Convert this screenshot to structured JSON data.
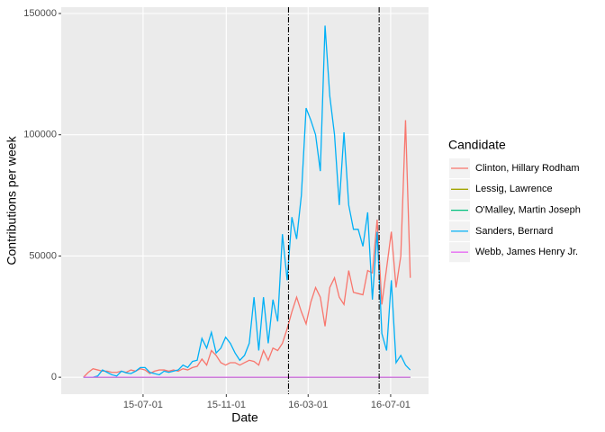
{
  "chart_data": {
    "type": "line",
    "x_label": "Date",
    "y_label": "Contributions per week",
    "legend_title": "Candidate",
    "legend_position": "right",
    "grid": true,
    "xlim": [
      "2015-03-02",
      "2016-08-26"
    ],
    "xticks": [
      {
        "value": "2015-07-01",
        "label": "15-07-01"
      },
      {
        "value": "2015-11-01",
        "label": "15-11-01"
      },
      {
        "value": "2016-03-01",
        "label": "16-03-01"
      },
      {
        "value": "2016-07-01",
        "label": "16-07-01"
      }
    ],
    "ylim": [
      -7000,
      152600
    ],
    "yticks": [
      0,
      50000,
      100000,
      150000
    ],
    "vlines": [
      "2016-02-01",
      "2016-06-14"
    ],
    "x": [
      "2015-04-04",
      "2015-04-11",
      "2015-04-18",
      "2015-04-25",
      "2015-05-02",
      "2015-05-09",
      "2015-05-16",
      "2015-05-23",
      "2015-05-30",
      "2015-06-06",
      "2015-06-13",
      "2015-06-20",
      "2015-06-27",
      "2015-07-04",
      "2015-07-11",
      "2015-07-18",
      "2015-07-25",
      "2015-08-01",
      "2015-08-08",
      "2015-08-15",
      "2015-08-22",
      "2015-08-29",
      "2015-09-05",
      "2015-09-12",
      "2015-09-19",
      "2015-09-26",
      "2015-10-03",
      "2015-10-10",
      "2015-10-17",
      "2015-10-24",
      "2015-10-31",
      "2015-11-07",
      "2015-11-14",
      "2015-11-21",
      "2015-11-28",
      "2015-12-05",
      "2015-12-12",
      "2015-12-19",
      "2015-12-26",
      "2016-01-02",
      "2016-01-09",
      "2016-01-16",
      "2016-01-23",
      "2016-01-30",
      "2016-02-06",
      "2016-02-13",
      "2016-02-20",
      "2016-02-27",
      "2016-03-05",
      "2016-03-12",
      "2016-03-19",
      "2016-03-26",
      "2016-04-02",
      "2016-04-09",
      "2016-04-16",
      "2016-04-23",
      "2016-04-30",
      "2016-05-07",
      "2016-05-14",
      "2016-05-21",
      "2016-05-28",
      "2016-06-04",
      "2016-06-11",
      "2016-06-18",
      "2016-06-25",
      "2016-07-02",
      "2016-07-09",
      "2016-07-16",
      "2016-07-23",
      "2016-07-30"
    ],
    "series": [
      {
        "name": "Clinton, Hillary Rodham",
        "color": "#F8766D",
        "values": [
          0,
          2000,
          3500,
          3000,
          2500,
          2500,
          2000,
          2000,
          2500,
          2000,
          3000,
          2500,
          3500,
          3000,
          1500,
          2500,
          3000,
          3000,
          2500,
          3000,
          2500,
          3500,
          3000,
          4000,
          4500,
          7500,
          5000,
          11000,
          9000,
          6000,
          5000,
          6000,
          6000,
          5000,
          6000,
          7000,
          6500,
          5000,
          11000,
          7000,
          12000,
          11000,
          14000,
          20000,
          27000,
          33000,
          27000,
          22000,
          31000,
          37000,
          33000,
          21000,
          37000,
          41000,
          33000,
          30000,
          44000,
          35000,
          34500,
          34000,
          44000,
          43000,
          65000,
          30000,
          45000,
          60000,
          37000,
          50000,
          106000,
          41000
        ]
      },
      {
        "name": "Lessig, Lawrence",
        "color": "#A3A500",
        "values": [
          0,
          0,
          0,
          0,
          0,
          0,
          0,
          0,
          0,
          0,
          0,
          0,
          0,
          0,
          0,
          0,
          0,
          0,
          0,
          0,
          0,
          0,
          0,
          0,
          0,
          0,
          0,
          0,
          0,
          0,
          0,
          0,
          0,
          0,
          0,
          0,
          0,
          0,
          0,
          0,
          0,
          0,
          0,
          0,
          0,
          0,
          0,
          0,
          0,
          0,
          0,
          0,
          0,
          0,
          0,
          0,
          0,
          0,
          0,
          0,
          0,
          0,
          0,
          0,
          0,
          0,
          0,
          0,
          0,
          0
        ]
      },
      {
        "name": "O'Malley, Martin Joseph",
        "color": "#00BF7D",
        "values": [
          0,
          0,
          0,
          0,
          0,
          0,
          0,
          0,
          0,
          0,
          0,
          0,
          0,
          0,
          0,
          0,
          0,
          0,
          0,
          0,
          0,
          0,
          0,
          0,
          0,
          0,
          0,
          0,
          0,
          0,
          0,
          0,
          0,
          0,
          0,
          0,
          0,
          0,
          0,
          0,
          0,
          0,
          0,
          0,
          0,
          0,
          0,
          0,
          0,
          0,
          0,
          0,
          0,
          0,
          0,
          0,
          0,
          0,
          0,
          0,
          0,
          0,
          0,
          0,
          0,
          0,
          0,
          0,
          0,
          0
        ]
      },
      {
        "name": "Sanders, Bernard",
        "color": "#00B0F6",
        "values": [
          0,
          0,
          0,
          500,
          3000,
          2000,
          1000,
          500,
          2500,
          1800,
          1500,
          2500,
          4000,
          4000,
          2000,
          1500,
          1000,
          2500,
          2000,
          2500,
          3000,
          5000,
          4000,
          6500,
          7000,
          16000,
          12000,
          18500,
          10000,
          12000,
          16500,
          14000,
          10000,
          7000,
          9000,
          14000,
          33000,
          11000,
          33000,
          14000,
          32000,
          23000,
          59000,
          40000,
          66000,
          57000,
          75000,
          111000,
          106000,
          100000,
          85000,
          145000,
          116000,
          100000,
          71000,
          101000,
          71000,
          61000,
          61000,
          54000,
          68000,
          32000,
          60000,
          18000,
          11000,
          40000,
          6000,
          9000,
          5000,
          3000
        ]
      },
      {
        "name": "Webb, James Henry Jr.",
        "color": "#E76BF3",
        "values": [
          0,
          0,
          0,
          0,
          0,
          0,
          0,
          0,
          0,
          0,
          0,
          0,
          0,
          0,
          0,
          0,
          0,
          0,
          0,
          0,
          0,
          0,
          0,
          0,
          0,
          0,
          0,
          0,
          0,
          0,
          0,
          0,
          0,
          0,
          0,
          0,
          0,
          0,
          0,
          0,
          0,
          0,
          0,
          0,
          0,
          0,
          0,
          0,
          0,
          0,
          0,
          0,
          0,
          0,
          0,
          0,
          0,
          0,
          0,
          0,
          0,
          0,
          0,
          0,
          0,
          0,
          0,
          0,
          0,
          0
        ]
      }
    ]
  }
}
